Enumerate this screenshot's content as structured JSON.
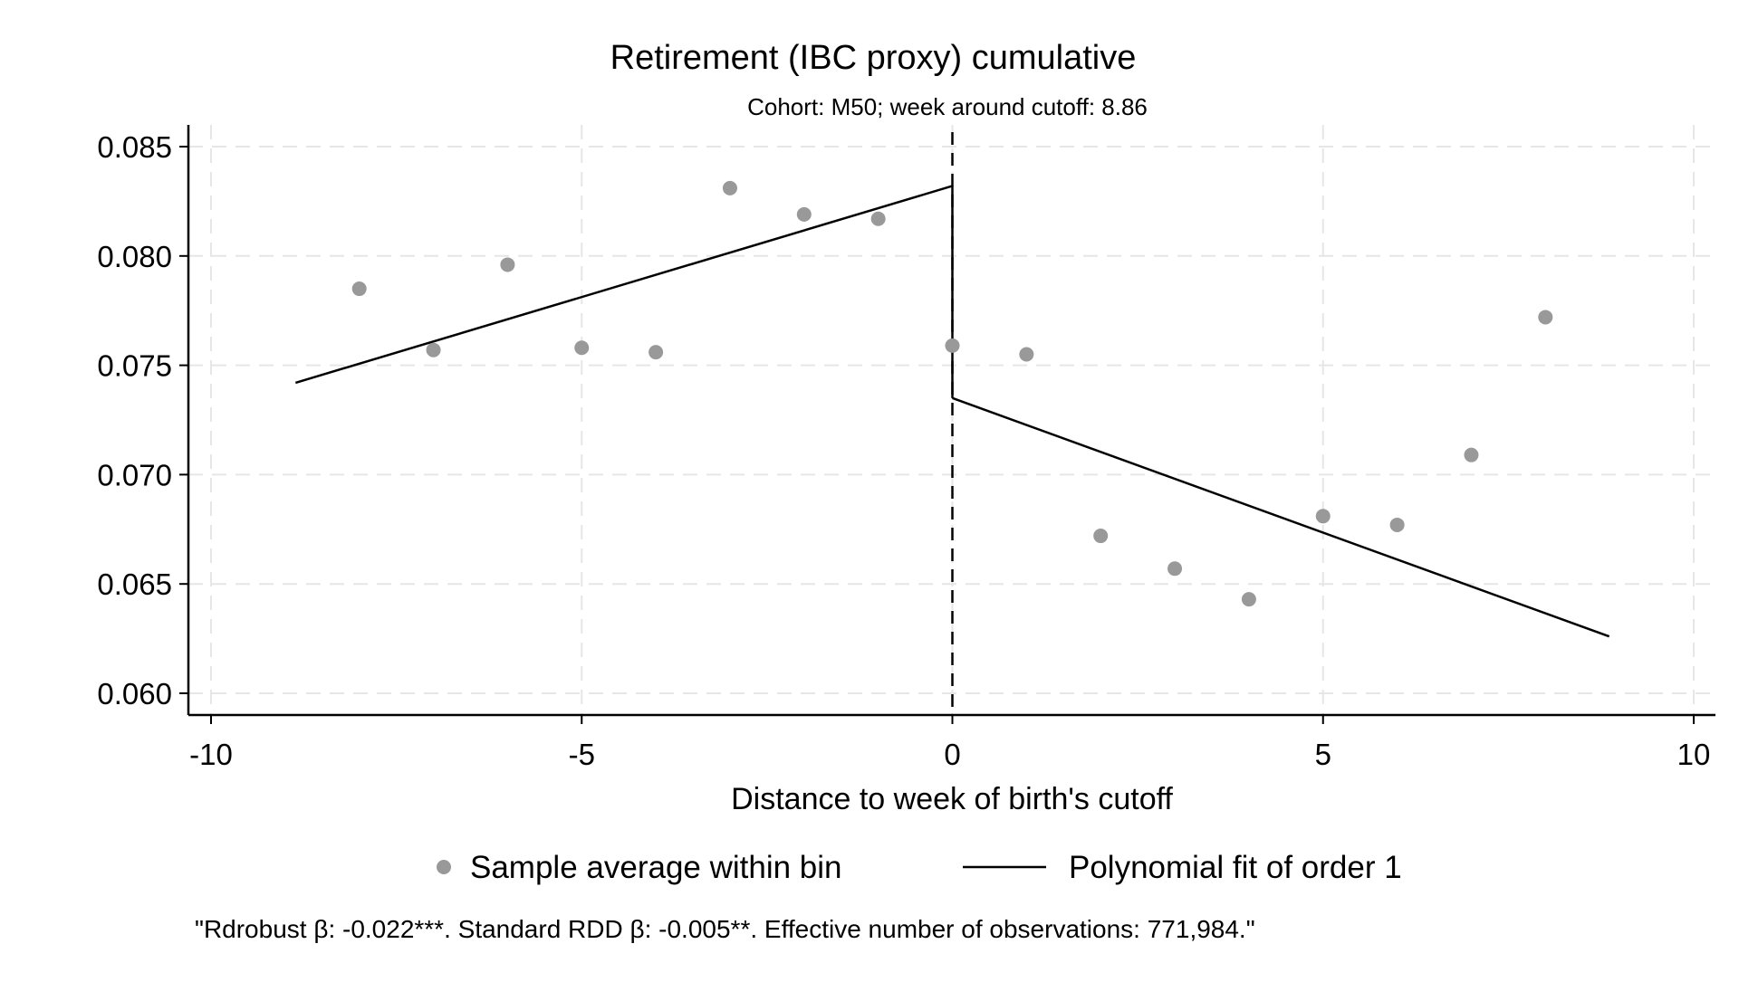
{
  "chart_data": {
    "type": "scatter",
    "title": "Retirement (IBC proxy) cumulative",
    "subtitle": "Cohort: M50; week around cutoff: 8.86",
    "xlabel": "Distance to week of birth's cutoff",
    "ylabel": "",
    "xlim": [
      -10.3,
      10.3
    ],
    "ylim": [
      0.059,
      0.0856
    ],
    "xticks": [
      -10,
      -5,
      0,
      5,
      10
    ],
    "xtick_labels": [
      "-10",
      "-5",
      "0",
      "5",
      "10"
    ],
    "yticks": [
      0.06,
      0.065,
      0.07,
      0.075,
      0.08,
      0.085
    ],
    "ytick_labels": [
      "0.060",
      "0.065",
      "0.070",
      "0.075",
      "0.080",
      "0.085"
    ],
    "grid": true,
    "cutoff_line": 0,
    "series": [
      {
        "name": "Sample average within bin",
        "type": "scatter",
        "color": "#999999",
        "points": [
          {
            "x": -8,
            "y": 0.0785
          },
          {
            "x": -7,
            "y": 0.0757
          },
          {
            "x": -6,
            "y": 0.0796
          },
          {
            "x": -5,
            "y": 0.0758
          },
          {
            "x": -4,
            "y": 0.0756
          },
          {
            "x": -3,
            "y": 0.0831
          },
          {
            "x": -2,
            "y": 0.0819
          },
          {
            "x": -1,
            "y": 0.0817
          },
          {
            "x": 0,
            "y": 0.0759
          },
          {
            "x": 1,
            "y": 0.0755
          },
          {
            "x": 2,
            "y": 0.0672
          },
          {
            "x": 3,
            "y": 0.0657
          },
          {
            "x": 4,
            "y": 0.0643
          },
          {
            "x": 5,
            "y": 0.0681
          },
          {
            "x": 6,
            "y": 0.0677
          },
          {
            "x": 7,
            "y": 0.0709
          },
          {
            "x": 8,
            "y": 0.0772
          }
        ]
      },
      {
        "name": "Polynomial fit of order 1",
        "type": "line",
        "color": "#000000",
        "segments": [
          [
            {
              "x": -8.86,
              "y": 0.0742
            },
            {
              "x": 0,
              "y": 0.0832
            }
          ],
          [
            {
              "x": 0,
              "y": 0.0735
            },
            {
              "x": 8.86,
              "y": 0.0626
            }
          ]
        ]
      }
    ],
    "legend": {
      "placement": "bottom",
      "items": [
        "Sample average within bin",
        "Polynomial fit of order 1"
      ]
    },
    "note": "\"Rdrobust β: -0.022***. Standard RDD β: -0.005**. Effective number of observations: 771,984.\""
  }
}
